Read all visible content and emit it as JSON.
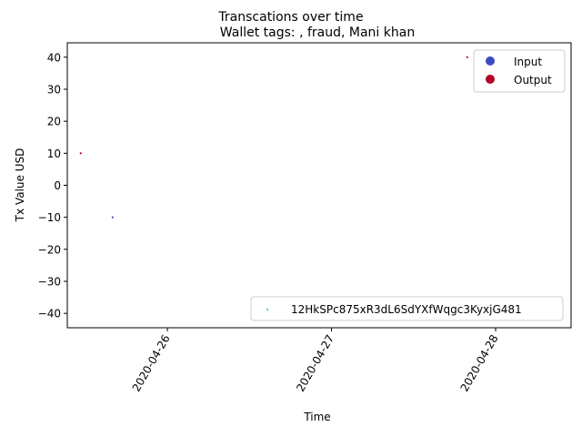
{
  "chart_data": {
    "type": "scatter",
    "suptitle": "Transcations over time",
    "title": "Wallet tags: , fraud, Mani khan",
    "xlabel": "Time",
    "ylabel": "Tx Value USD",
    "x_type": "datetime",
    "xlim": [
      "2020-04-25T09:22",
      "2020-04-28T11:02"
    ],
    "ylim": [
      -44.5,
      44.5
    ],
    "x_ticks": [
      {
        "value": "2020-04-26T00:00",
        "label": "2020-04-26"
      },
      {
        "value": "2020-04-27T00:00",
        "label": "2020-04-27"
      },
      {
        "value": "2020-04-28T00:00",
        "label": "2020-04-28"
      }
    ],
    "y_ticks": [
      {
        "value": 40,
        "label": "40"
      },
      {
        "value": 30,
        "label": "30"
      },
      {
        "value": 20,
        "label": "20"
      },
      {
        "value": 10,
        "label": "10"
      },
      {
        "value": 0,
        "label": "0"
      },
      {
        "value": -10,
        "label": "−10"
      },
      {
        "value": -20,
        "label": "−20"
      },
      {
        "value": -30,
        "label": "−30"
      },
      {
        "value": -40,
        "label": "−40"
      }
    ],
    "grid": false,
    "series": [
      {
        "name": "Input",
        "color": "#3b4cc0",
        "points": [
          {
            "x": "2020-04-25T16:00",
            "y": -10
          }
        ]
      },
      {
        "name": "Output",
        "color": "#b40426",
        "points": [
          {
            "x": "2020-04-25T11:20",
            "y": 10
          },
          {
            "x": "2020-04-27T19:50",
            "y": 40
          }
        ]
      }
    ],
    "legend_top_right": {
      "placement": "top-right",
      "entries": [
        {
          "label": "Input",
          "color": "#3b4cc0"
        },
        {
          "label": "Output",
          "color": "#b40426"
        }
      ]
    },
    "legend_bottom_right": {
      "placement": "bottom-right",
      "entries": [
        {
          "label": "12HkSPc875xR3dL6SdYXfWqgc3KyxjG481",
          "color": "#17becf"
        }
      ]
    }
  }
}
